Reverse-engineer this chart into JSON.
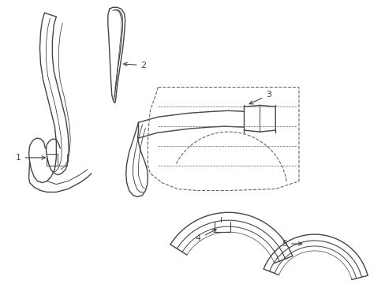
{
  "background_color": "#ffffff",
  "line_color": "#444444",
  "line_width": 1.0,
  "dashed_color": "#666666",
  "font_size": 8
}
